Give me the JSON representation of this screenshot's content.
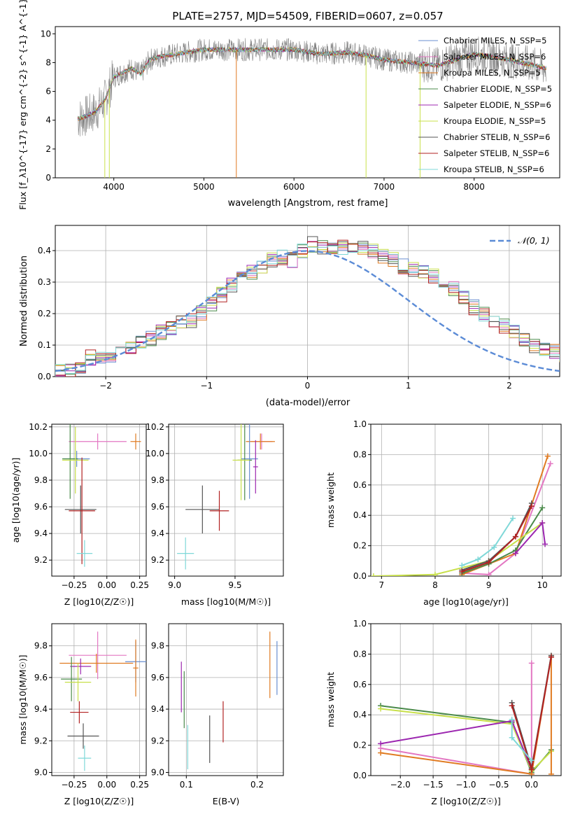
{
  "chart_data": [
    {
      "type": "line",
      "title": "PLATE=2757, MJD=54509, FIBERID=0607, z=0.057",
      "xlabel": "wavelength [Angstrom, rest frame]",
      "ylabel": "Flux [f_λ10^{-17} erg cm^{-2} s^{-1} A^{-1}]",
      "xlim": [
        3350,
        8950
      ],
      "ylim": [
        0,
        10.5
      ],
      "xticks": [
        "4000",
        "5000",
        "6000",
        "7000",
        "8000"
      ],
      "yticks": [
        "0",
        "2",
        "4",
        "6",
        "8",
        "10"
      ],
      "legend": [
        {
          "name": "Chabrier MILES, N_SSP=5",
          "color": "#6a8fd0"
        },
        {
          "name": "Salpeter MILES, N_SSP=6",
          "color": "#e377c2"
        },
        {
          "name": "Kroupa MILES, N_SSP=5",
          "color": "#e07b22"
        },
        {
          "name": "Chabrier ELODIE, N_SSP=5",
          "color": "#4a8a4a"
        },
        {
          "name": "Salpeter ELODIE, N_SSP=6",
          "color": "#9c27b0"
        },
        {
          "name": "Kroupa ELODIE, N_SSP=5",
          "color": "#c8e04a"
        },
        {
          "name": "Chabrier STELIB, N_SSP=6",
          "color": "#555555"
        },
        {
          "name": "Salpeter STELIB, N_SSP=6",
          "color": "#b22222"
        },
        {
          "name": "Kroupa STELIB, N_SSP=6",
          "color": "#7fd8d8"
        }
      ],
      "legend_position": "right",
      "data_color": "#808080",
      "continuum_x": [
        3600,
        3700,
        3800,
        3900,
        4000,
        4100,
        4200,
        4300,
        4400,
        4500,
        4700,
        5000,
        5300,
        5600,
        6000,
        6300,
        6600,
        6800,
        7000,
        7300,
        7600,
        8000,
        8300,
        8600,
        8800
      ],
      "continuum_y": [
        4.1,
        4.3,
        4.6,
        5.4,
        7.0,
        7.3,
        7.6,
        7.2,
        8.2,
        8.4,
        8.6,
        8.9,
        8.9,
        8.9,
        8.9,
        8.6,
        8.7,
        8.5,
        8.2,
        8.0,
        7.8,
        8.6,
        8.3,
        7.9,
        7.6
      ]
    },
    {
      "type": "bar",
      "xlabel": "(data-model)/error",
      "ylabel": "Normed distribution",
      "xlim": [
        -2.5,
        2.5
      ],
      "ylim": [
        0,
        0.48
      ],
      "xticks": [
        "−2",
        "−1",
        "0",
        "1",
        "2"
      ],
      "yticks": [
        "0.0",
        "0.1",
        "0.2",
        "0.3",
        "0.4"
      ],
      "grid": true,
      "legend": [
        {
          "name": "𝒩(0, 1)",
          "color": "#5b8bd6"
        }
      ],
      "legend_position": "top-right",
      "bin_width": 0.1,
      "x_start": -2.5,
      "hist_values": [
        0.02,
        0.02,
        0.025,
        0.06,
        0.06,
        0.07,
        0.08,
        0.09,
        0.11,
        0.12,
        0.14,
        0.15,
        0.17,
        0.18,
        0.2,
        0.23,
        0.26,
        0.29,
        0.32,
        0.33,
        0.35,
        0.37,
        0.38,
        0.37,
        0.4,
        0.42,
        0.41,
        0.4,
        0.41,
        0.4,
        0.41,
        0.4,
        0.38,
        0.37,
        0.35,
        0.34,
        0.33,
        0.32,
        0.3,
        0.28,
        0.25,
        0.22,
        0.2,
        0.18,
        0.16,
        0.14,
        0.12,
        0.1,
        0.09,
        0.08,
        0.07,
        0.06,
        0.05,
        0.04,
        0.035,
        0.03,
        0.025,
        0.02
      ],
      "series_colors": [
        "#6a8fd0",
        "#e377c2",
        "#e07b22",
        "#4a8a4a",
        "#9c27b0",
        "#c8e04a",
        "#555555",
        "#b22222",
        "#7fd8d8"
      ]
    },
    {
      "type": "scatter",
      "xlabel": "Z [log10(Z/Z☉)]",
      "ylabel": "age  [log10(age/yr)]",
      "xlim": [
        -0.42,
        0.3
      ],
      "ylim": [
        9.08,
        10.22
      ],
      "xticks": [
        "−0.25",
        "0.00",
        "0.25"
      ],
      "yticks": [
        "9.2",
        "9.4",
        "9.6",
        "9.8",
        "10.0",
        "10.2"
      ],
      "grid": true,
      "points": [
        {
          "x": -0.07,
          "y": 10.09,
          "xerr": 0.22,
          "yerr": 0.06,
          "color": "#e377c2"
        },
        {
          "x": 0.22,
          "y": 10.09,
          "xerr": 0.04,
          "yerr": 0.06,
          "color": "#e07b22"
        },
        {
          "x": -0.23,
          "y": 9.96,
          "xerr": 0.1,
          "yerr": 0.06,
          "color": "#6a8fd0"
        },
        {
          "x": -0.28,
          "y": 9.96,
          "xerr": 0.06,
          "yerr": 0.3,
          "color": "#4a8a4a"
        },
        {
          "x": -0.24,
          "y": 9.95,
          "xerr": 0.1,
          "yerr": 0.25,
          "color": "#c8e04a"
        },
        {
          "x": -0.2,
          "y": 9.58,
          "xerr": 0.12,
          "yerr": 0.18,
          "color": "#555555"
        },
        {
          "x": -0.19,
          "y": 9.57,
          "xerr": 0.1,
          "yerr": 0.4,
          "color": "#b22222"
        },
        {
          "x": -0.17,
          "y": 9.25,
          "xerr": 0.06,
          "yerr": 0.1,
          "color": "#7fd8d8"
        }
      ]
    },
    {
      "type": "scatter",
      "xlabel": "mass [log10(M/M☉)]",
      "xlim": [
        8.95,
        9.9
      ],
      "ylim": [
        9.08,
        10.22
      ],
      "xticks": [
        "9.0",
        "9.5"
      ],
      "yticks": [
        "9.2",
        "9.4",
        "9.6",
        "9.8",
        "10.0",
        "10.2"
      ],
      "grid": true,
      "points": [
        {
          "x": 9.72,
          "y": 10.09,
          "xerr": 0.09,
          "yerr": 0.06,
          "color": "#e377c2"
        },
        {
          "x": 9.71,
          "y": 10.09,
          "xerr": 0.12,
          "yerr": 0.06,
          "color": "#e07b22"
        },
        {
          "x": 9.62,
          "y": 9.96,
          "xerr": 0.07,
          "yerr": 0.3,
          "color": "#6a8fd0"
        },
        {
          "x": 9.58,
          "y": 9.95,
          "xerr": 0.06,
          "yerr": 0.3,
          "color": "#4a8a4a"
        },
        {
          "x": 9.55,
          "y": 9.95,
          "xerr": 0.07,
          "yerr": 0.3,
          "color": "#c8e04a"
        },
        {
          "x": 9.67,
          "y": 9.9,
          "xerr": 0.02,
          "yerr": 0.2,
          "color": "#9c27b0"
        },
        {
          "x": 9.23,
          "y": 9.58,
          "xerr": 0.14,
          "yerr": 0.18,
          "color": "#555555"
        },
        {
          "x": 9.37,
          "y": 9.57,
          "xerr": 0.08,
          "yerr": 0.15,
          "color": "#b22222"
        },
        {
          "x": 9.09,
          "y": 9.25,
          "xerr": 0.07,
          "yerr": 0.12,
          "color": "#7fd8d8"
        }
      ]
    },
    {
      "type": "line",
      "xlabel": "age  [log10(age/yr)]",
      "ylabel": "mass weight",
      "xlim": [
        6.8,
        10.35
      ],
      "ylim": [
        0,
        1
      ],
      "xticks": [
        "7",
        "8",
        "9",
        "10"
      ],
      "yticks": [
        "0.0",
        "0.2",
        "0.4",
        "0.6",
        "0.8",
        "1.0"
      ],
      "grid": true,
      "series": [
        {
          "color": "#e377c2",
          "x": [
            8.5,
            9.0,
            9.5,
            10.15
          ],
          "y": [
            0.02,
            0.01,
            0.15,
            0.74
          ]
        },
        {
          "color": "#e07b22",
          "x": [
            8.5,
            9.5,
            10.1
          ],
          "y": [
            0.01,
            0.15,
            0.79
          ]
        },
        {
          "color": "#4a8a4a",
          "x": [
            8.5,
            9.0,
            9.5,
            10.0
          ],
          "y": [
            0.02,
            0.08,
            0.17,
            0.45
          ]
        },
        {
          "color": "#c8e04a",
          "x": [
            6.85,
            8.0,
            9.0,
            10.0
          ],
          "y": [
            0.0,
            0.01,
            0.1,
            0.35
          ]
        },
        {
          "color": "#9c27b0",
          "x": [
            9.5,
            10.0,
            10.05
          ],
          "y": [
            0.15,
            0.35,
            0.21
          ]
        },
        {
          "color": "#555555",
          "x": [
            8.5,
            9.0,
            9.5,
            9.8
          ],
          "y": [
            0.04,
            0.1,
            0.26,
            0.48
          ]
        },
        {
          "color": "#b22222",
          "x": [
            8.5,
            9.0,
            9.5,
            9.8
          ],
          "y": [
            0.03,
            0.09,
            0.26,
            0.46
          ]
        },
        {
          "color": "#7fd8d8",
          "x": [
            8.5,
            8.8,
            9.1,
            9.45
          ],
          "y": [
            0.07,
            0.11,
            0.19,
            0.38
          ]
        }
      ]
    },
    {
      "type": "scatter",
      "xlabel": "Z [log10(Z/Z☉)]",
      "ylabel": "mass [log10(M/M☉)]",
      "xlim": [
        -0.42,
        0.3
      ],
      "ylim": [
        8.98,
        9.94
      ],
      "xticks": [
        "−0.25",
        "0.00",
        "0.25"
      ],
      "yticks": [
        "9.0",
        "9.2",
        "9.4",
        "9.6",
        "9.8"
      ],
      "grid": true,
      "points": [
        {
          "x": -0.07,
          "y": 9.74,
          "xerr": 0.22,
          "yerr": 0.15,
          "color": "#e377c2"
        },
        {
          "x": 0.22,
          "y": 9.7,
          "xerr": 0.08,
          "yerr": 0.13,
          "color": "#6a8fd0"
        },
        {
          "x": -0.08,
          "y": 9.69,
          "xerr": 0.28,
          "yerr": 0.06,
          "color": "#e07b22"
        },
        {
          "x": 0.22,
          "y": 9.66,
          "xerr": 0.02,
          "yerr": 0.18,
          "color": "#e07b22"
        },
        {
          "x": -0.2,
          "y": 9.67,
          "xerr": 0.08,
          "yerr": 0.05,
          "color": "#9c27b0"
        },
        {
          "x": -0.27,
          "y": 9.59,
          "xerr": 0.08,
          "yerr": 0.14,
          "color": "#4a8a4a"
        },
        {
          "x": -0.22,
          "y": 9.57,
          "xerr": 0.1,
          "yerr": 0.12,
          "color": "#c8e04a"
        },
        {
          "x": -0.21,
          "y": 9.38,
          "xerr": 0.07,
          "yerr": 0.07,
          "color": "#b22222"
        },
        {
          "x": -0.18,
          "y": 9.23,
          "xerr": 0.12,
          "yerr": 0.08,
          "color": "#555555"
        },
        {
          "x": -0.17,
          "y": 9.09,
          "xerr": 0.05,
          "yerr": 0.08,
          "color": "#7fd8d8"
        }
      ]
    },
    {
      "type": "scatter",
      "xlabel": "E(B-V)",
      "xlim": [
        0.075,
        0.237
      ],
      "ylim": [
        8.98,
        9.94
      ],
      "xticks": [
        "0.1",
        "0.2"
      ],
      "yticks": [
        "9.0",
        "9.2",
        "9.4",
        "9.6",
        "9.8"
      ],
      "grid": true,
      "points": [
        {
          "x": 0.228,
          "y": 9.66,
          "yerr": 0.17,
          "color": "#6a8fd0"
        },
        {
          "x": 0.218,
          "y": 9.68,
          "yerr": 0.21,
          "color": "#e07b22"
        },
        {
          "x": 0.093,
          "y": 9.54,
          "yerr": 0.16,
          "color": "#9c27b0"
        },
        {
          "x": 0.097,
          "y": 9.46,
          "yerr": 0.18,
          "color": "#4a8a4a"
        },
        {
          "x": 0.102,
          "y": 9.16,
          "yerr": 0.14,
          "color": "#7fd8d8"
        },
        {
          "x": 0.133,
          "y": 9.21,
          "yerr": 0.15,
          "color": "#555555"
        },
        {
          "x": 0.152,
          "y": 9.32,
          "yerr": 0.13,
          "color": "#b22222"
        }
      ]
    },
    {
      "type": "line",
      "xlabel": "Z [log10(Z/Z☉)]",
      "ylabel": "mass weight",
      "xlim": [
        -2.45,
        0.45
      ],
      "ylim": [
        0,
        1
      ],
      "xticks": [
        "−2.0",
        "−1.5",
        "−1.0",
        "−0.5",
        "0.0"
      ],
      "yticks": [
        "0.0",
        "0.2",
        "0.4",
        "0.6",
        "0.8",
        "1.0"
      ],
      "grid": true,
      "series": [
        {
          "color": "#4a8a4a",
          "x": [
            -2.3,
            -0.3,
            0.0,
            0.3
          ],
          "y": [
            0.46,
            0.35,
            0.02,
            0.17
          ]
        },
        {
          "color": "#c8e04a",
          "x": [
            -2.3,
            -0.3,
            0.0,
            0.3
          ],
          "y": [
            0.44,
            0.34,
            0.03,
            0.16
          ]
        },
        {
          "color": "#9c27b0",
          "x": [
            -2.3,
            -0.3,
            0.0
          ],
          "y": [
            0.21,
            0.36,
            0.04
          ]
        },
        {
          "color": "#e377c2",
          "x": [
            -2.3,
            0.0,
            0.0
          ],
          "y": [
            0.18,
            0.01,
            0.74
          ]
        },
        {
          "color": "#e07b22",
          "x": [
            -2.3,
            0.0,
            0.3,
            0.3
          ],
          "y": [
            0.15,
            0.01,
            0.79,
            0.01
          ]
        },
        {
          "color": "#555555",
          "x": [
            -0.3,
            0.0,
            0.3
          ],
          "y": [
            0.48,
            0.05,
            0.79
          ]
        },
        {
          "color": "#b22222",
          "x": [
            -0.3,
            0.0,
            0.3
          ],
          "y": [
            0.46,
            0.04,
            0.78
          ]
        },
        {
          "color": "#7fd8d8",
          "x": [
            -0.3,
            -0.3,
            0.0
          ],
          "y": [
            0.37,
            0.25,
            0.1
          ]
        }
      ]
    }
  ]
}
